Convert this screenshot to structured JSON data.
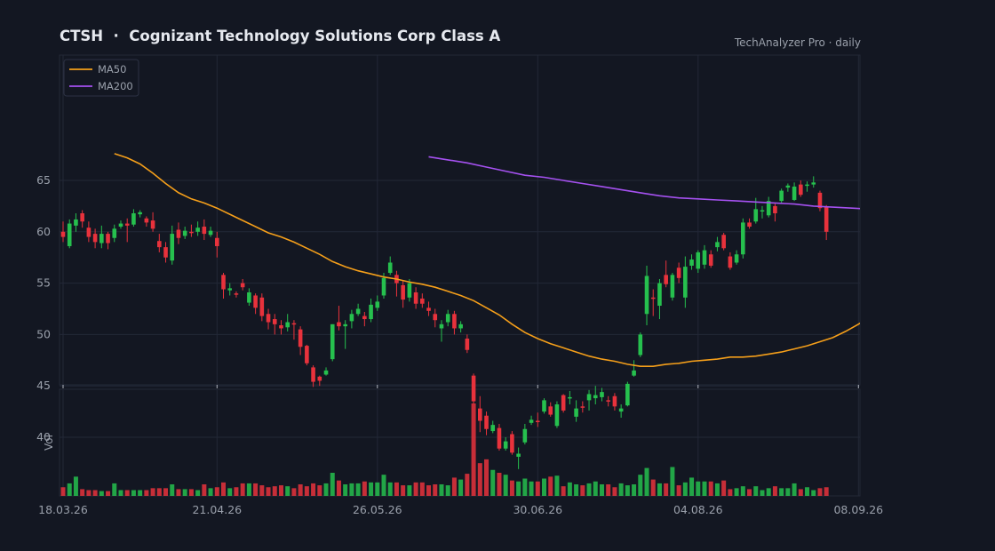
{
  "title": "CTSH  ·  Cognizant Technology Solutions Corp Class A",
  "subtitle": "TechAnalyzer Pro · daily",
  "colors": {
    "background": "#131722",
    "up": "#26c04e",
    "down": "#e8323c",
    "ma50": "#f59f1a",
    "ma200": "#a551f0",
    "grid": "#232837",
    "text": "#9aa0ab"
  },
  "chart_data": {
    "type": "candlestick",
    "title": "CTSH  ·  Cognizant Technology Solutions Corp Class A",
    "ylim": [
      35,
      67
    ],
    "yticks": [
      40,
      45,
      50,
      55,
      60,
      65
    ],
    "volume_label": "Vol",
    "x_tick_labels": [
      {
        "index": 0,
        "label": "18.03.26"
      },
      {
        "index": 24,
        "label": "21.04.26"
      },
      {
        "index": 49,
        "label": "26.05.26"
      },
      {
        "index": 74,
        "label": "30.06.26"
      },
      {
        "index": 99,
        "label": "04.08.26"
      },
      {
        "index": 124,
        "label": "08.09.26"
      }
    ],
    "legend": {
      "position": "top-left",
      "entries": [
        "MA50",
        "MA200"
      ]
    },
    "candles": [
      [
        60.0,
        59.5,
        61.0,
        59.0,
        "down",
        0.9
      ],
      [
        58.6,
        60.8,
        61.2,
        58.4,
        "up",
        1.3
      ],
      [
        60.6,
        61.2,
        61.8,
        60.0,
        "up",
        2.0
      ],
      [
        61.8,
        61.0,
        62.1,
        60.4,
        "down",
        0.7
      ],
      [
        60.4,
        59.5,
        61.0,
        59.0,
        "down",
        0.6
      ],
      [
        59.8,
        59.0,
        60.3,
        58.4,
        "down",
        0.6
      ],
      [
        58.9,
        59.8,
        60.6,
        58.4,
        "up",
        0.5
      ],
      [
        59.8,
        58.9,
        60.0,
        58.3,
        "down",
        0.5
      ],
      [
        59.4,
        60.3,
        60.7,
        59.0,
        "up",
        1.3
      ],
      [
        60.5,
        60.8,
        61.1,
        60.3,
        "up",
        0.6
      ],
      [
        60.8,
        60.6,
        61.3,
        59.0,
        "down",
        0.6
      ],
      [
        60.7,
        61.8,
        62.2,
        60.5,
        "up",
        0.6
      ],
      [
        61.7,
        61.9,
        62.1,
        61.4,
        "up",
        0.6
      ],
      [
        61.3,
        60.9,
        61.5,
        60.5,
        "down",
        0.6
      ],
      [
        61.1,
        60.3,
        61.9,
        60.0,
        "down",
        0.8
      ],
      [
        59.1,
        58.5,
        59.8,
        58.0,
        "down",
        0.8
      ],
      [
        58.5,
        57.5,
        59.0,
        57.0,
        "down",
        0.8
      ],
      [
        57.2,
        59.8,
        60.6,
        56.8,
        "up",
        1.2
      ],
      [
        60.2,
        59.4,
        60.9,
        58.8,
        "down",
        0.7
      ],
      [
        59.6,
        60.1,
        60.5,
        59.3,
        "up",
        0.7
      ],
      [
        60.0,
        59.9,
        60.7,
        59.5,
        "down",
        0.7
      ],
      [
        60.0,
        60.4,
        61.0,
        59.6,
        "up",
        0.6
      ],
      [
        60.5,
        59.8,
        61.2,
        59.2,
        "down",
        1.2
      ],
      [
        59.7,
        60.1,
        60.5,
        59.5,
        "up",
        0.8
      ],
      [
        59.4,
        58.6,
        60.0,
        57.5,
        "down",
        0.9
      ],
      [
        55.8,
        54.4,
        56.0,
        53.5,
        "down",
        1.4
      ],
      [
        54.3,
        54.5,
        55.0,
        53.8,
        "up",
        0.8
      ],
      [
        54.0,
        53.9,
        54.2,
        53.6,
        "down",
        0.9
      ],
      [
        55.0,
        54.6,
        55.4,
        54.3,
        "down",
        1.3
      ],
      [
        53.1,
        54.1,
        54.5,
        52.8,
        "up",
        1.3
      ],
      [
        53.8,
        52.6,
        54.0,
        52.0,
        "down",
        1.3
      ],
      [
        53.6,
        51.8,
        54.0,
        51.3,
        "down",
        1.1
      ],
      [
        52.0,
        51.2,
        52.5,
        50.5,
        "down",
        0.9
      ],
      [
        51.5,
        51.0,
        52.0,
        50.0,
        "down",
        1.0
      ],
      [
        50.9,
        50.6,
        51.4,
        50.0,
        "down",
        1.1
      ],
      [
        50.7,
        51.2,
        52.0,
        50.3,
        "up",
        1.0
      ],
      [
        51.1,
        51.0,
        51.4,
        49.5,
        "down",
        0.8
      ],
      [
        50.5,
        48.8,
        50.8,
        48.0,
        "down",
        1.2
      ],
      [
        48.9,
        47.2,
        49.0,
        47.0,
        "down",
        1.0
      ],
      [
        46.8,
        45.4,
        47.0,
        44.9,
        "down",
        1.3
      ],
      [
        45.9,
        45.5,
        46.0,
        45.0,
        "down",
        1.1
      ],
      [
        46.1,
        46.5,
        46.8,
        46.0,
        "up",
        1.3
      ],
      [
        47.6,
        51.0,
        51.0,
        47.4,
        "up",
        2.4
      ],
      [
        51.2,
        50.8,
        52.8,
        50.4,
        "down",
        1.6
      ],
      [
        50.8,
        51.0,
        51.4,
        48.6,
        "up",
        1.2
      ],
      [
        51.3,
        52.0,
        52.4,
        50.6,
        "up",
        1.3
      ],
      [
        52.0,
        52.5,
        53.0,
        51.8,
        "up",
        1.3
      ],
      [
        51.8,
        51.5,
        52.2,
        50.8,
        "down",
        1.5
      ],
      [
        51.5,
        52.9,
        53.5,
        51.2,
        "up",
        1.4
      ],
      [
        52.6,
        53.2,
        53.8,
        52.3,
        "up",
        1.4
      ],
      [
        53.8,
        55.5,
        56.0,
        53.5,
        "up",
        2.2
      ],
      [
        56.0,
        57.0,
        57.6,
        55.8,
        "up",
        1.4
      ],
      [
        55.8,
        55.0,
        56.2,
        53.7,
        "down",
        1.4
      ],
      [
        54.8,
        53.4,
        55.2,
        52.6,
        "down",
        1.1
      ],
      [
        53.6,
        55.0,
        55.4,
        53.2,
        "up",
        1.1
      ],
      [
        54.1,
        53.0,
        54.6,
        52.5,
        "down",
        1.4
      ],
      [
        53.5,
        53.0,
        54.0,
        52.6,
        "down",
        1.4
      ],
      [
        52.6,
        52.3,
        53.2,
        51.8,
        "down",
        1.1
      ],
      [
        52.0,
        51.4,
        52.5,
        50.7,
        "down",
        1.2
      ],
      [
        50.6,
        51.0,
        51.4,
        49.3,
        "up",
        1.2
      ],
      [
        51.2,
        52.0,
        52.4,
        50.8,
        "up",
        1.1
      ],
      [
        52.0,
        50.6,
        52.3,
        50.0,
        "down",
        1.9
      ],
      [
        50.6,
        51.0,
        51.3,
        50.2,
        "up",
        1.7
      ],
      [
        49.6,
        48.5,
        50.0,
        48.2,
        "down",
        2.3
      ],
      [
        46.0,
        43.5,
        46.2,
        43.2,
        "down",
        9.6
      ],
      [
        42.8,
        41.6,
        44.0,
        40.5,
        "down",
        3.4
      ],
      [
        42.1,
        40.8,
        42.5,
        40.2,
        "down",
        3.8
      ],
      [
        40.6,
        41.2,
        41.6,
        40.4,
        "up",
        2.7
      ],
      [
        40.9,
        38.9,
        41.3,
        38.7,
        "down",
        2.4
      ],
      [
        38.9,
        39.6,
        40.0,
        38.7,
        "up",
        2.2
      ],
      [
        40.3,
        38.5,
        40.6,
        38.3,
        "down",
        1.6
      ],
      [
        38.1,
        38.4,
        39.0,
        36.9,
        "up",
        1.5
      ],
      [
        39.5,
        40.8,
        41.3,
        39.3,
        "up",
        1.8
      ],
      [
        41.4,
        41.7,
        42.1,
        41.2,
        "up",
        1.5
      ],
      [
        41.6,
        41.5,
        42.4,
        41.0,
        "down",
        1.5
      ],
      [
        42.5,
        43.6,
        43.8,
        42.3,
        "up",
        1.8
      ],
      [
        43.0,
        42.2,
        43.4,
        42.0,
        "down",
        2.0
      ],
      [
        41.1,
        43.2,
        43.5,
        40.9,
        "up",
        2.1
      ],
      [
        44.1,
        42.6,
        44.2,
        42.4,
        "down",
        1.0
      ],
      [
        43.8,
        43.9,
        44.5,
        43.2,
        "up",
        1.4
      ],
      [
        42.0,
        42.8,
        43.6,
        41.5,
        "up",
        1.2
      ],
      [
        43.0,
        42.9,
        43.5,
        42.4,
        "down",
        1.1
      ],
      [
        43.6,
        44.2,
        44.6,
        42.6,
        "up",
        1.3
      ],
      [
        43.8,
        44.1,
        45.0,
        43.2,
        "up",
        1.5
      ],
      [
        44.4,
        43.9,
        44.8,
        43.5,
        "up",
        1.2
      ],
      [
        43.6,
        43.5,
        44.0,
        43.0,
        "down",
        1.2
      ],
      [
        44.0,
        43.0,
        44.3,
        42.6,
        "down",
        0.9
      ],
      [
        42.5,
        42.8,
        43.2,
        41.9,
        "up",
        1.3
      ],
      [
        43.1,
        45.2,
        45.4,
        43.0,
        "up",
        1.1
      ],
      [
        46.0,
        46.5,
        47.5,
        45.9,
        "up",
        1.2
      ],
      [
        48.0,
        50.0,
        50.2,
        47.8,
        "up",
        2.2
      ],
      [
        52.0,
        55.7,
        56.7,
        50.9,
        "up",
        2.9
      ],
      [
        53.6,
        53.5,
        54.4,
        51.8,
        "down",
        1.7
      ],
      [
        52.8,
        55.0,
        55.4,
        51.5,
        "up",
        1.3
      ],
      [
        55.8,
        54.9,
        57.2,
        54.6,
        "down",
        1.3
      ],
      [
        53.6,
        55.8,
        56.0,
        53.3,
        "up",
        3.0
      ],
      [
        56.5,
        55.5,
        57.0,
        55.0,
        "down",
        1.1
      ],
      [
        53.6,
        56.6,
        57.6,
        52.6,
        "up",
        1.4
      ],
      [
        56.7,
        57.3,
        57.8,
        56.3,
        "up",
        1.9
      ],
      [
        56.4,
        58.0,
        58.2,
        56.0,
        "up",
        1.5
      ],
      [
        56.8,
        58.2,
        58.7,
        56.4,
        "up",
        1.5
      ],
      [
        57.8,
        56.7,
        58.2,
        56.5,
        "down",
        1.5
      ],
      [
        58.5,
        59.0,
        59.5,
        58.1,
        "up",
        1.3
      ],
      [
        59.7,
        58.4,
        59.9,
        58.2,
        "down",
        1.6
      ],
      [
        57.6,
        56.5,
        58.0,
        56.3,
        "down",
        0.7
      ],
      [
        57.0,
        57.8,
        58.2,
        56.8,
        "up",
        0.8
      ],
      [
        57.8,
        60.9,
        61.3,
        57.4,
        "up",
        1.0
      ],
      [
        60.9,
        60.5,
        61.3,
        60.3,
        "down",
        0.7
      ],
      [
        61.0,
        62.2,
        63.3,
        60.8,
        "up",
        1.0
      ],
      [
        62.0,
        62.1,
        62.5,
        61.3,
        "up",
        0.6
      ],
      [
        61.6,
        63.0,
        63.4,
        61.4,
        "up",
        0.8
      ],
      [
        62.5,
        61.8,
        62.8,
        61.0,
        "down",
        1.0
      ],
      [
        63.0,
        64.0,
        64.2,
        62.8,
        "up",
        0.8
      ],
      [
        64.3,
        64.5,
        64.7,
        63.9,
        "up",
        0.8
      ],
      [
        63.1,
        64.4,
        64.8,
        63.0,
        "up",
        1.3
      ],
      [
        64.6,
        63.6,
        65.0,
        63.4,
        "down",
        0.7
      ],
      [
        64.5,
        64.6,
        64.9,
        63.9,
        "up",
        0.9
      ],
      [
        64.6,
        64.8,
        65.4,
        64.3,
        "up",
        0.6
      ],
      [
        63.8,
        62.3,
        64.0,
        62.0,
        "down",
        0.8
      ],
      [
        62.4,
        60.0,
        62.6,
        59.2,
        "down",
        0.9
      ]
    ],
    "ma50": [
      [
        8,
        67.6
      ],
      [
        10,
        67.2
      ],
      [
        12,
        66.6
      ],
      [
        14,
        65.7
      ],
      [
        16,
        64.7
      ],
      [
        18,
        63.8
      ],
      [
        20,
        63.2
      ],
      [
        22,
        62.8
      ],
      [
        24,
        62.3
      ],
      [
        26,
        61.7
      ],
      [
        28,
        61.1
      ],
      [
        30,
        60.5
      ],
      [
        32,
        59.9
      ],
      [
        34,
        59.5
      ],
      [
        36,
        59.0
      ],
      [
        38,
        58.4
      ],
      [
        40,
        57.8
      ],
      [
        42,
        57.1
      ],
      [
        44,
        56.6
      ],
      [
        46,
        56.2
      ],
      [
        48,
        55.9
      ],
      [
        50,
        55.6
      ],
      [
        52,
        55.4
      ],
      [
        54,
        55.1
      ],
      [
        56,
        54.9
      ],
      [
        58,
        54.6
      ],
      [
        60,
        54.2
      ],
      [
        62,
        53.8
      ],
      [
        64,
        53.3
      ],
      [
        66,
        52.6
      ],
      [
        68,
        51.9
      ],
      [
        70,
        51.0
      ],
      [
        72,
        50.2
      ],
      [
        74,
        49.6
      ],
      [
        76,
        49.1
      ],
      [
        78,
        48.7
      ],
      [
        80,
        48.3
      ],
      [
        82,
        47.9
      ],
      [
        84,
        47.6
      ],
      [
        86,
        47.4
      ],
      [
        88,
        47.1
      ],
      [
        90,
        46.9
      ],
      [
        92,
        46.9
      ],
      [
        94,
        47.1
      ],
      [
        96,
        47.2
      ],
      [
        98,
        47.4
      ],
      [
        100,
        47.5
      ],
      [
        102,
        47.6
      ],
      [
        104,
        47.8
      ],
      [
        106,
        47.8
      ],
      [
        108,
        47.9
      ],
      [
        110,
        48.1
      ],
      [
        112,
        48.3
      ],
      [
        114,
        48.6
      ],
      [
        116,
        48.9
      ],
      [
        118,
        49.3
      ],
      [
        120,
        49.7
      ],
      [
        122,
        50.3
      ],
      [
        124,
        51.0
      ],
      [
        126,
        51.8
      ],
      [
        127,
        52.3
      ],
      [
        128,
        52.7
      ]
    ],
    "ma200": [
      [
        57,
        67.3
      ],
      [
        60,
        67.0
      ],
      [
        63,
        66.7
      ],
      [
        66,
        66.3
      ],
      [
        69,
        65.9
      ],
      [
        72,
        65.5
      ],
      [
        75,
        65.3
      ],
      [
        78,
        65.0
      ],
      [
        81,
        64.7
      ],
      [
        84,
        64.4
      ],
      [
        87,
        64.1
      ],
      [
        90,
        63.8
      ],
      [
        93,
        63.5
      ],
      [
        96,
        63.3
      ],
      [
        99,
        63.2
      ],
      [
        102,
        63.1
      ],
      [
        105,
        63.0
      ],
      [
        108,
        62.9
      ],
      [
        111,
        62.8
      ],
      [
        114,
        62.7
      ],
      [
        117,
        62.5
      ],
      [
        120,
        62.4
      ],
      [
        123,
        62.3
      ],
      [
        126,
        62.2
      ],
      [
        128,
        62.1
      ]
    ]
  }
}
